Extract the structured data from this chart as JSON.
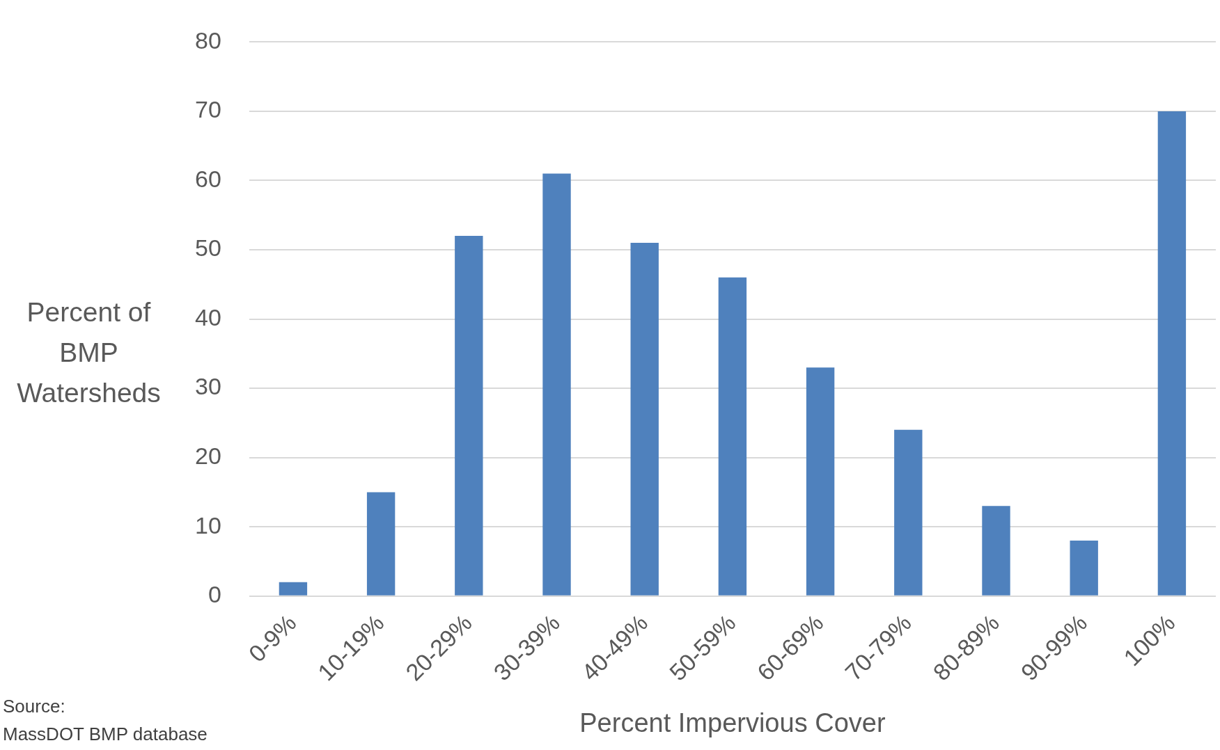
{
  "chart_data": {
    "type": "bar",
    "xlabel": "Percent Impervious Cover",
    "ylabel": "Percent of BMP Watersheds",
    "categories": [
      "0-9%",
      "10-19%",
      "20-29%",
      "30-39%",
      "40-49%",
      "50-59%",
      "60-69%",
      "70-79%",
      "80-89%",
      "90-99%",
      "100%"
    ],
    "values": [
      2,
      15,
      52,
      61,
      51,
      46,
      33,
      24,
      13,
      8,
      70
    ],
    "color": "#4f81bd",
    "ylim": [
      0,
      80
    ],
    "yticks": [
      0,
      10,
      20,
      30,
      40,
      50,
      60,
      70,
      80
    ],
    "grid": "y",
    "annotations": [
      "Source:\nMassDOT BMP database"
    ]
  }
}
